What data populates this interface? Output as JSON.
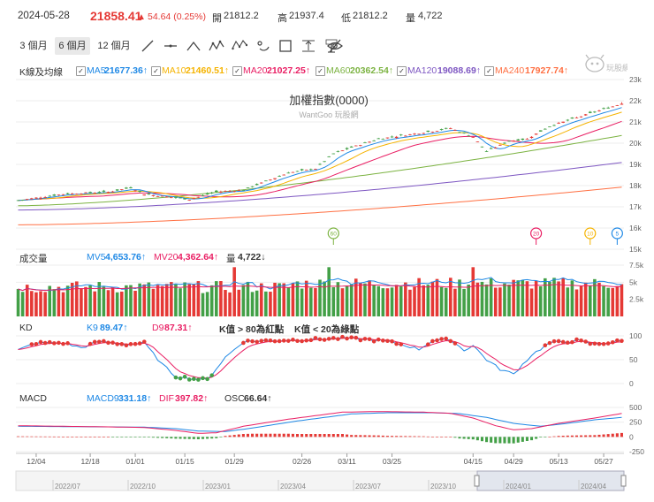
{
  "header": {
    "date": "2024-05-28",
    "price": "21858.41",
    "change": "54.64 (0.25%)",
    "open_label": "開",
    "open": "21812.2",
    "high_label": "高",
    "high": "21937.4",
    "low_label": "低",
    "low": "21812.2",
    "vol_label": "量",
    "vol": "4,722"
  },
  "ranges": [
    "3 個月",
    "6 個月",
    "12 個月"
  ],
  "selected_range": "6 個月",
  "tools": [
    "line-tool-icon",
    "horizontal-line-icon",
    "angle-icon",
    "wave-pattern-icon",
    "abcd-pattern-icon",
    "fibonacci-icon",
    "rectangle-icon",
    "price-range-icon",
    "text-tool-icon",
    "hide-icon"
  ],
  "colors": {
    "up": "#e53935",
    "down": "#43a047",
    "ma5": "#1e88e5",
    "ma10": "#f5b300",
    "ma20": "#e91e63",
    "ma60": "#7cb342",
    "ma120": "#7e57c2",
    "ma240": "#ff7043",
    "k": "#1e88e5",
    "d": "#e91e63",
    "dot": "#e53935"
  },
  "kline": {
    "label": "K線及均線",
    "title": "加權指數(0000)",
    "watermark": "WantGoo 玩股網",
    "brand": "玩股網",
    "legend": [
      {
        "name": "MA5",
        "value": "21677.36↑",
        "key": "ma5"
      },
      {
        "name": "MA10",
        "value": "21460.51↑",
        "key": "ma10"
      },
      {
        "name": "MA20",
        "value": "21027.25↑",
        "key": "ma20"
      },
      {
        "name": "MA60",
        "value": "20362.54↑",
        "key": "ma60"
      },
      {
        "name": "MA120",
        "value": "19088.69↑",
        "key": "ma120"
      },
      {
        "name": "MA240",
        "value": "17927.74↑",
        "key": "ma240"
      }
    ],
    "y_ticks": [
      "23k",
      "22k",
      "21k",
      "20k",
      "19k",
      "18k",
      "17k",
      "16k",
      "15k"
    ],
    "markers": [
      {
        "label": "60",
        "key": "ma60",
        "idx": 70
      },
      {
        "label": "20",
        "key": "ma20",
        "idx": 115
      },
      {
        "label": "10",
        "key": "ma10",
        "idx": 127
      },
      {
        "label": "5",
        "key": "ma5",
        "idx": 133
      }
    ]
  },
  "volume": {
    "label": "成交量",
    "legend": [
      {
        "name": "MV5",
        "value": "4,653.76↑",
        "key": "ma5"
      },
      {
        "name": "MV20",
        "value": "4,362.64↑",
        "key": "ma20"
      },
      {
        "name": "量",
        "value": "4,722↓",
        "key": "text"
      }
    ],
    "y_ticks": [
      "7.5k",
      "5k",
      "2.5k"
    ]
  },
  "kd": {
    "label": "KD",
    "legend": [
      {
        "name": "K9",
        "value": "89.47↑",
        "key": "k"
      },
      {
        "name": "D9",
        "value": "87.31↑",
        "key": "d"
      },
      {
        "name": "K值 > 80為紅點",
        "value": "",
        "key": "text"
      },
      {
        "name": "K值 < 20為綠點",
        "value": "",
        "key": "text"
      }
    ],
    "y_ticks": [
      "100",
      "50",
      "0"
    ]
  },
  "macd": {
    "label": "MACD",
    "legend": [
      {
        "name": "MACD9",
        "value": "331.18↑",
        "key": "ma5"
      },
      {
        "name": "DIF",
        "value": "397.82↑",
        "key": "d"
      },
      {
        "name": "OSC",
        "value": "66.64↑",
        "key": "text"
      }
    ],
    "y_ticks": [
      "500",
      "250",
      "0",
      "-250"
    ]
  },
  "x_labels": [
    {
      "text": "12/04",
      "idx": 4
    },
    {
      "text": "12/18",
      "idx": 16
    },
    {
      "text": "01/01",
      "idx": 26
    },
    {
      "text": "01/15",
      "idx": 37
    },
    {
      "text": "01/29",
      "idx": 48
    },
    {
      "text": "02/26",
      "idx": 63
    },
    {
      "text": "03/11",
      "idx": 73
    },
    {
      "text": "03/25",
      "idx": 83
    },
    {
      "text": "04/15",
      "idx": 101
    },
    {
      "text": "04/29",
      "idx": 110
    },
    {
      "text": "05/13",
      "idx": 120
    },
    {
      "text": "05/27",
      "idx": 130
    }
  ],
  "navigator": {
    "labels": [
      "2022/07",
      "2022/10",
      "2023/01",
      "2023/04",
      "2023/07",
      "2023/10",
      "2024/01",
      "2024/04"
    ]
  },
  "chart_data": [
    {
      "type": "candlestick",
      "title": "加權指數(0000)",
      "y_range": [
        15000,
        23000
      ],
      "x_start": "2023-11-28",
      "x_end": "2024-05-28",
      "points_xy": [
        [
          0,
          17300
        ],
        [
          10,
          17600
        ],
        [
          20,
          17700
        ],
        [
          25,
          17900
        ],
        [
          28,
          17600
        ],
        [
          38,
          17350
        ],
        [
          44,
          17700
        ],
        [
          50,
          17800
        ],
        [
          60,
          18600
        ],
        [
          66,
          18800
        ],
        [
          70,
          19500
        ],
        [
          74,
          19800
        ],
        [
          80,
          20200
        ],
        [
          90,
          20500
        ],
        [
          96,
          20700
        ],
        [
          101,
          20300
        ],
        [
          104,
          19600
        ],
        [
          109,
          20100
        ],
        [
          113,
          20200
        ],
        [
          118,
          20800
        ],
        [
          124,
          21200
        ],
        [
          130,
          21600
        ],
        [
          134,
          21858
        ]
      ],
      "ma_last": {
        "MA5": 21677.36,
        "MA10": 21460.51,
        "MA20": 21027.25,
        "MA60": 20362.54,
        "MA120": 19088.69,
        "MA240": 17927.74
      }
    },
    {
      "type": "bar",
      "title": "成交量",
      "y_range": [
        0,
        7500
      ],
      "last": 4722,
      "MV5": 4653.76,
      "MV20": 4362.64
    },
    {
      "type": "line",
      "title": "KD",
      "y_range": [
        0,
        100
      ],
      "K9": 89.47,
      "D9": 87.31
    },
    {
      "type": "line",
      "title": "MACD",
      "y_range": [
        -250,
        500
      ],
      "MACD9": 331.18,
      "DIF": 397.82,
      "OSC": 66.64
    }
  ]
}
